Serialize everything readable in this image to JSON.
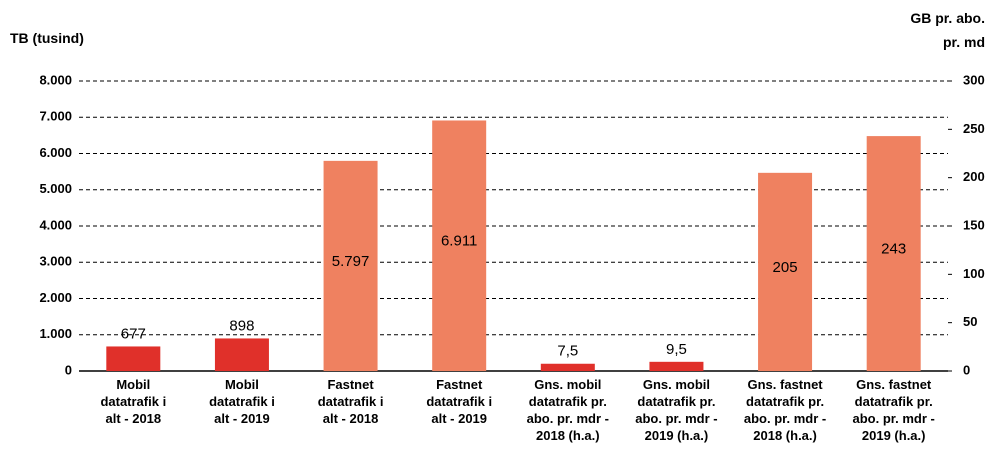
{
  "chart_data": {
    "type": "bar",
    "y_label": "TB (tusind)",
    "y2_label": "GB pr. abo.\npr. md",
    "categories": [
      "Mobil\ndatatrafik i\nalt - 2018",
      "Mobil\ndatatrafik i\nalt - 2019",
      "Fastnet\ndatatrafik i\nalt - 2018",
      "Fastnet\ndatatrafik i\nalt - 2019",
      "Gns. mobil\ndatatrafik pr.\nabo. pr. mdr -\n2018 (h.a.)",
      "Gns. mobil\ndatatrafik pr.\nabo. pr. mdr -\n2019 (h.a.)",
      "Gns. fastnet\ndatatrafik pr.\nabo. pr. mdr -\n2018 (h.a.)",
      "Gns. fastnet\ndatatrafik pr.\nabo. pr. mdr -\n2019 (h.a.)"
    ],
    "series": [
      {
        "axis": "y",
        "values": [
          677,
          898,
          5797,
          6911,
          null,
          null,
          null,
          null
        ],
        "value_labels": [
          "677",
          "898",
          "5.797",
          "6.911",
          null,
          null,
          null,
          null
        ],
        "colors": [
          "#e0302a",
          "#e0302a",
          "#ef8160",
          "#ef8160",
          null,
          null,
          null,
          null
        ]
      },
      {
        "axis": "y2",
        "values": [
          null,
          null,
          null,
          null,
          7.5,
          9.5,
          205,
          243
        ],
        "value_labels": [
          null,
          null,
          null,
          null,
          "7,5",
          "9,5",
          "205",
          "243"
        ],
        "colors": [
          null,
          null,
          null,
          null,
          "#e0302a",
          "#e0302a",
          "#ef8160",
          "#ef8160"
        ]
      }
    ],
    "ylim": [
      0,
      8000
    ],
    "yticks": [
      0,
      {
        "value": 1000,
        "label": "1.000"
      },
      {
        "value": 2000,
        "label": "2.000"
      },
      {
        "value": 3000,
        "label": "3.000"
      },
      {
        "value": 4000,
        "label": "4.000"
      },
      {
        "value": 5000,
        "label": "5.000"
      },
      {
        "value": 6000,
        "label": "6.000"
      },
      {
        "value": 7000,
        "label": "7.000"
      },
      {
        "value": 8000,
        "label": "8.000"
      }
    ],
    "y2lim": [
      0,
      300
    ],
    "y2ticks": [
      0,
      50,
      100,
      150,
      200,
      250,
      300
    ],
    "grid": true
  }
}
